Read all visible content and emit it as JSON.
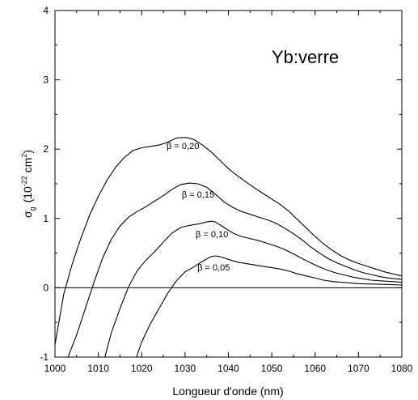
{
  "chart_data": {
    "type": "line",
    "xlabel": "Longueur d'onde (nm)",
    "ylabel": {
      "symbol": "σ",
      "subscript": "g",
      "unit_open": "(10",
      "unit_exp": "-22",
      "unit_mid": " cm",
      "unit_exp2": "2",
      "unit_close": ")"
    },
    "xlim": [
      1000,
      1080
    ],
    "ylim": [
      -1,
      4
    ],
    "x_ticks": [
      1000,
      1010,
      1020,
      1030,
      1040,
      1050,
      1060,
      1070,
      1080
    ],
    "y_ticks": [
      -1,
      0,
      1,
      2,
      3,
      4
    ],
    "annotation": "Yb:verre",
    "grid": false,
    "reference_line_y": 0,
    "series": [
      {
        "name": "β = 0,20",
        "label_at": [
          1029.5,
          2.0
        ],
        "points": [
          [
            1000,
            -0.82
          ],
          [
            1002,
            -0.1
          ],
          [
            1004,
            0.35
          ],
          [
            1006,
            0.72
          ],
          [
            1008,
            1.05
          ],
          [
            1010,
            1.32
          ],
          [
            1012,
            1.55
          ],
          [
            1014,
            1.74
          ],
          [
            1016,
            1.88
          ],
          [
            1018,
            1.98
          ],
          [
            1020,
            2.02
          ],
          [
            1022,
            2.04
          ],
          [
            1024,
            2.06
          ],
          [
            1026,
            2.1
          ],
          [
            1028,
            2.16
          ],
          [
            1030,
            2.17
          ],
          [
            1032,
            2.14
          ],
          [
            1034,
            2.06
          ],
          [
            1036,
            1.96
          ],
          [
            1038,
            1.84
          ],
          [
            1040,
            1.72
          ],
          [
            1042,
            1.62
          ],
          [
            1044,
            1.53
          ],
          [
            1046,
            1.44
          ],
          [
            1048,
            1.36
          ],
          [
            1050,
            1.28
          ],
          [
            1052,
            1.2
          ],
          [
            1054,
            1.1
          ],
          [
            1056,
            0.98
          ],
          [
            1058,
            0.86
          ],
          [
            1060,
            0.74
          ],
          [
            1062,
            0.63
          ],
          [
            1064,
            0.54
          ],
          [
            1066,
            0.46
          ],
          [
            1068,
            0.4
          ],
          [
            1070,
            0.35
          ],
          [
            1072,
            0.31
          ],
          [
            1074,
            0.27
          ],
          [
            1076,
            0.23
          ],
          [
            1078,
            0.2
          ],
          [
            1080,
            0.17
          ]
        ]
      },
      {
        "name": "β = 0,15",
        "label_at": [
          1033,
          1.3
        ],
        "points": [
          [
            1003,
            -1.0
          ],
          [
            1005,
            -0.68
          ],
          [
            1007,
            -0.3
          ],
          [
            1009,
            0.08
          ],
          [
            1011,
            0.43
          ],
          [
            1013,
            0.7
          ],
          [
            1015,
            0.89
          ],
          [
            1017,
            1.02
          ],
          [
            1019,
            1.1
          ],
          [
            1021,
            1.17
          ],
          [
            1023,
            1.25
          ],
          [
            1025,
            1.33
          ],
          [
            1027,
            1.42
          ],
          [
            1029,
            1.49
          ],
          [
            1031,
            1.51
          ],
          [
            1033,
            1.5
          ],
          [
            1035,
            1.45
          ],
          [
            1037,
            1.35
          ],
          [
            1039,
            1.24
          ],
          [
            1041,
            1.16
          ],
          [
            1043,
            1.1
          ],
          [
            1045,
            1.06
          ],
          [
            1047,
            1.02
          ],
          [
            1049,
            0.98
          ],
          [
            1051,
            0.93
          ],
          [
            1053,
            0.86
          ],
          [
            1055,
            0.78
          ],
          [
            1057,
            0.69
          ],
          [
            1059,
            0.59
          ],
          [
            1061,
            0.5
          ],
          [
            1063,
            0.42
          ],
          [
            1065,
            0.36
          ],
          [
            1067,
            0.31
          ],
          [
            1069,
            0.26
          ],
          [
            1071,
            0.22
          ],
          [
            1073,
            0.19
          ],
          [
            1075,
            0.16
          ],
          [
            1077,
            0.14
          ],
          [
            1080,
            0.12
          ]
        ]
      },
      {
        "name": "β = 0,10",
        "label_at": [
          1036.2,
          0.73
        ],
        "points": [
          [
            1011.5,
            -1.0
          ],
          [
            1013,
            -0.65
          ],
          [
            1015,
            -0.3
          ],
          [
            1017,
            0.02
          ],
          [
            1019,
            0.25
          ],
          [
            1021,
            0.4
          ],
          [
            1023,
            0.52
          ],
          [
            1025,
            0.66
          ],
          [
            1027,
            0.79
          ],
          [
            1029,
            0.87
          ],
          [
            1031,
            0.9
          ],
          [
            1033,
            0.92
          ],
          [
            1035,
            0.95
          ],
          [
            1036,
            0.96
          ],
          [
            1037,
            0.95
          ],
          [
            1039,
            0.87
          ],
          [
            1041,
            0.79
          ],
          [
            1043,
            0.74
          ],
          [
            1045,
            0.71
          ],
          [
            1047,
            0.68
          ],
          [
            1049,
            0.64
          ],
          [
            1051,
            0.6
          ],
          [
            1053,
            0.55
          ],
          [
            1055,
            0.49
          ],
          [
            1057,
            0.42
          ],
          [
            1059,
            0.36
          ],
          [
            1061,
            0.3
          ],
          [
            1063,
            0.25
          ],
          [
            1065,
            0.21
          ],
          [
            1067,
            0.18
          ],
          [
            1069,
            0.15
          ],
          [
            1071,
            0.13
          ],
          [
            1073,
            0.11
          ],
          [
            1075,
            0.1
          ],
          [
            1080,
            0.08
          ]
        ]
      },
      {
        "name": "β = 0,05",
        "label_at": [
          1036.6,
          0.25
        ],
        "points": [
          [
            1018.8,
            -1.0
          ],
          [
            1020,
            -0.78
          ],
          [
            1022,
            -0.52
          ],
          [
            1024,
            -0.3
          ],
          [
            1026,
            -0.08
          ],
          [
            1028,
            0.1
          ],
          [
            1030,
            0.23
          ],
          [
            1032,
            0.3
          ],
          [
            1034,
            0.38
          ],
          [
            1036,
            0.45
          ],
          [
            1037,
            0.46
          ],
          [
            1038,
            0.45
          ],
          [
            1040,
            0.41
          ],
          [
            1042,
            0.37
          ],
          [
            1044,
            0.35
          ],
          [
            1046,
            0.33
          ],
          [
            1048,
            0.31
          ],
          [
            1050,
            0.29
          ],
          [
            1052,
            0.27
          ],
          [
            1054,
            0.24
          ],
          [
            1056,
            0.2
          ],
          [
            1058,
            0.17
          ],
          [
            1060,
            0.14
          ],
          [
            1062,
            0.11
          ],
          [
            1064,
            0.09
          ],
          [
            1066,
            0.08
          ],
          [
            1068,
            0.07
          ],
          [
            1070,
            0.06
          ],
          [
            1075,
            0.05
          ],
          [
            1080,
            0.04
          ]
        ]
      }
    ]
  }
}
